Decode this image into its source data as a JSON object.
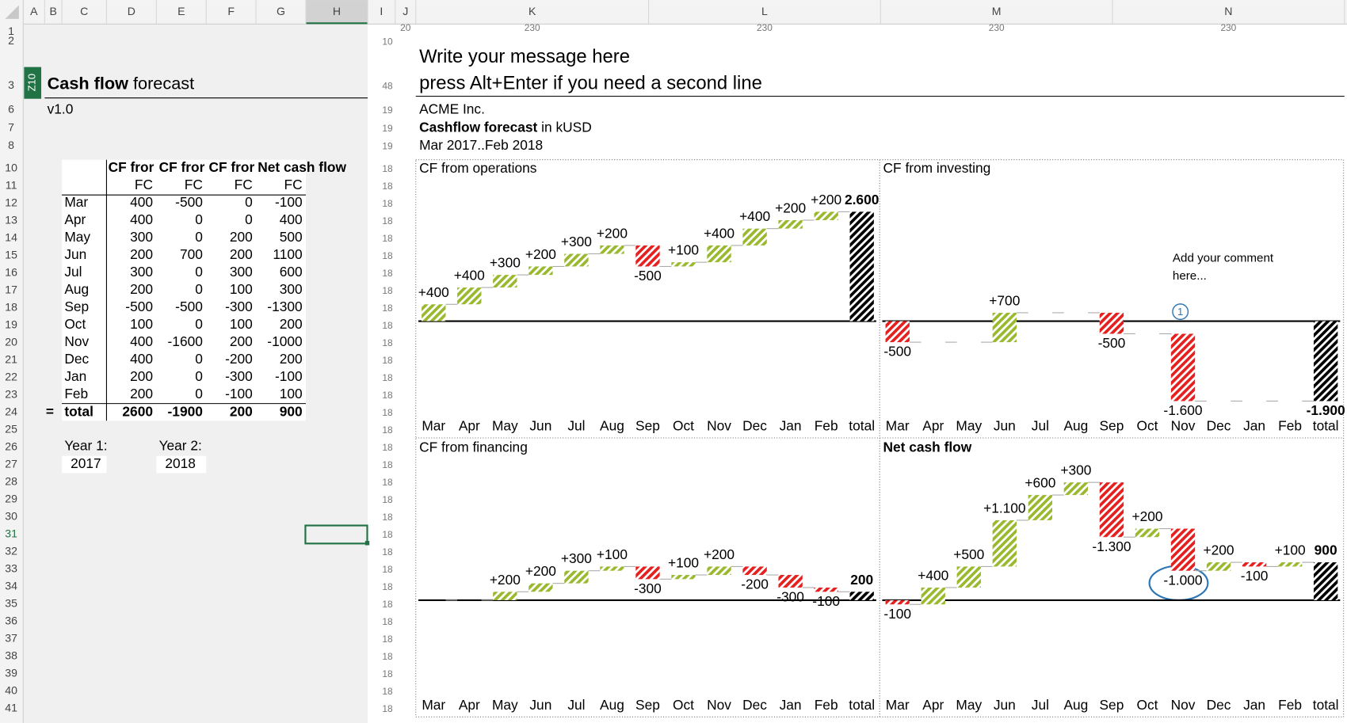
{
  "sheet": {
    "columns": [
      "A",
      "B",
      "C",
      "D",
      "E",
      "F",
      "G",
      "H",
      "I",
      "J",
      "K",
      "L",
      "M",
      "N"
    ],
    "column_widths": [
      null,
      null,
      null,
      null,
      null,
      null,
      null,
      null,
      null,
      20,
      230,
      230,
      230,
      230
    ],
    "rows": [
      1,
      2,
      3,
      6,
      7,
      8,
      10,
      11,
      12,
      13,
      14,
      15,
      16,
      17,
      18,
      19,
      20,
      21,
      22,
      23,
      24,
      25,
      26,
      27,
      28,
      29,
      30,
      31,
      32,
      33,
      34,
      35,
      36,
      37,
      38,
      39,
      40,
      41
    ],
    "row_heights": [
      null,
      10,
      48,
      19,
      19,
      19,
      18,
      18,
      18,
      18,
      18,
      18,
      18,
      18,
      18,
      18,
      18,
      18,
      18,
      18,
      18,
      18,
      18,
      18,
      18,
      18,
      18,
      18,
      18,
      18,
      18,
      18,
      18,
      18,
      18,
      18,
      18,
      18
    ],
    "name_box": "Z10"
  },
  "left": {
    "title_bold": "Cash flow",
    "title_rest": "forecast",
    "version": "v1.0",
    "table": {
      "header": [
        "CF fror",
        "CF fror",
        "CF fror",
        "Net cash flow"
      ],
      "subheader": [
        "FC",
        "FC",
        "FC",
        "FC"
      ],
      "rows": [
        [
          "Mar",
          400,
          -500,
          0,
          -100
        ],
        [
          "Apr",
          400,
          0,
          0,
          400
        ],
        [
          "May",
          300,
          0,
          200,
          500
        ],
        [
          "Jun",
          200,
          700,
          200,
          1100
        ],
        [
          "Jul",
          300,
          0,
          300,
          600
        ],
        [
          "Aug",
          200,
          0,
          100,
          300
        ],
        [
          "Sep",
          -500,
          -500,
          -300,
          -1300
        ],
        [
          "Oct",
          100,
          0,
          100,
          200
        ],
        [
          "Nov",
          400,
          -1600,
          200,
          -1000
        ],
        [
          "Dec",
          400,
          0,
          -200,
          200
        ],
        [
          "Jan",
          200,
          0,
          -300,
          -100
        ],
        [
          "Feb",
          200,
          0,
          -100,
          100
        ]
      ],
      "total": [
        "=",
        "total",
        2600,
        -1900,
        200,
        900
      ]
    },
    "year1_label": "Year 1:",
    "year1": 2017,
    "year2_label": "Year 2:",
    "year2": 2018
  },
  "report": {
    "message": [
      "Write your message here",
      "press Alt+Enter if you need a second line"
    ],
    "company": "ACME Inc.",
    "title_bold": "Cashflow forecast",
    "title_rest": "in kUSD",
    "period": "Mar 2017..Feb 2018"
  },
  "chart_data": [
    {
      "type": "waterfall",
      "title": "CF from operations",
      "title_bold": false,
      "total": true,
      "categories": [
        "Mar",
        "Apr",
        "May",
        "Jun",
        "Jul",
        "Aug",
        "Sep",
        "Oct",
        "Nov",
        "Dec",
        "Jan",
        "Feb",
        "total"
      ],
      "values": [
        400,
        400,
        300,
        200,
        300,
        200,
        -500,
        100,
        400,
        400,
        200,
        200,
        2600
      ],
      "value_labels": [
        "+400",
        "+400",
        "+300",
        "+200",
        "+300",
        "+200",
        "-500",
        "+100",
        "+400",
        "+400",
        "+200",
        "+200",
        "2.600"
      ],
      "positive_color": "#9ab92e",
      "negative_color": "#e5201f",
      "total_color": "#000000"
    },
    {
      "type": "waterfall",
      "title": "CF from investing",
      "title_bold": false,
      "total": true,
      "categories": [
        "Mar",
        "Apr",
        "May",
        "Jun",
        "Jul",
        "Aug",
        "Sep",
        "Oct",
        "Nov",
        "Dec",
        "Jan",
        "Feb",
        "total"
      ],
      "values": [
        -500,
        0,
        0,
        700,
        0,
        0,
        -500,
        0,
        -1600,
        0,
        0,
        0,
        -1900
      ],
      "value_labels": [
        "-500",
        null,
        null,
        "+700",
        null,
        null,
        "-500",
        null,
        "-1.600",
        null,
        null,
        null,
        "-1.900"
      ],
      "positive_color": "#9ab92e",
      "negative_color": "#e5201f",
      "total_color": "#000000",
      "annotations": [
        {
          "lines": [
            "Add your comment",
            "here..."
          ],
          "marker": "1"
        }
      ]
    },
    {
      "type": "waterfall",
      "title": "CF from financing",
      "title_bold": false,
      "total": true,
      "categories": [
        "Mar",
        "Apr",
        "May",
        "Jun",
        "Jul",
        "Aug",
        "Sep",
        "Oct",
        "Nov",
        "Dec",
        "Jan",
        "Feb",
        "total"
      ],
      "values": [
        0,
        0,
        200,
        200,
        300,
        100,
        -300,
        100,
        200,
        -200,
        -300,
        -100,
        200
      ],
      "value_labels": [
        null,
        null,
        "+200",
        "+200",
        "+300",
        "+100",
        "-300",
        "+100",
        "+200",
        "-200",
        "-300",
        "-100",
        "200"
      ],
      "positive_color": "#9ab92e",
      "negative_color": "#e5201f",
      "total_color": "#000000"
    },
    {
      "type": "waterfall",
      "title": "Net cash flow",
      "title_bold": true,
      "total": true,
      "categories": [
        "Mar",
        "Apr",
        "May",
        "Jun",
        "Jul",
        "Aug",
        "Sep",
        "Oct",
        "Nov",
        "Dec",
        "Jan",
        "Feb",
        "total"
      ],
      "values": [
        -100,
        400,
        500,
        1100,
        600,
        300,
        -1300,
        200,
        -1000,
        200,
        -100,
        100,
        900
      ],
      "value_labels": [
        "-100",
        "+400",
        "+500",
        "+1.100",
        "+600",
        "+300",
        "-1.300",
        "+200",
        "-1.000",
        "+200",
        "-100",
        "+100",
        "900"
      ],
      "positive_color": "#9ab92e",
      "negative_color": "#e5201f",
      "total_color": "#000000"
    }
  ]
}
